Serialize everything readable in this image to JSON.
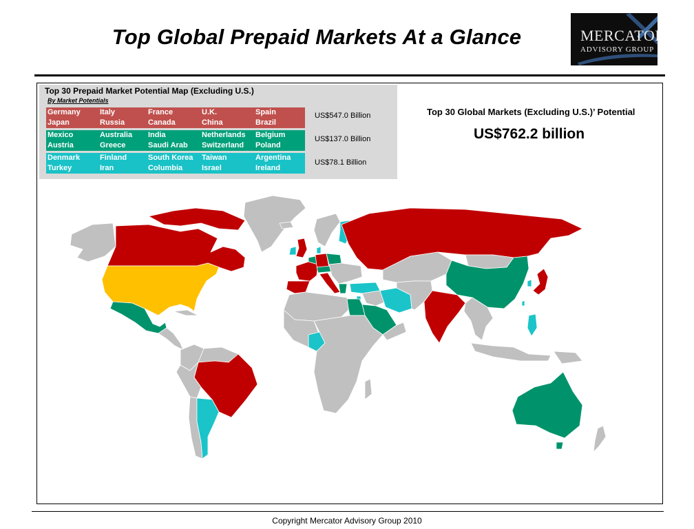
{
  "title": "Top Global Prepaid Markets At a Glance",
  "logo": {
    "line1": "MERCATOR",
    "line2": "ADVISORY GROUP"
  },
  "legend": {
    "title": "Top 30 Prepaid Market Potential Map (Excluding U.S.)",
    "subtitle": "By Market Potentials",
    "tiers": [
      {
        "color": "#c0504d",
        "value": "US$547.0 Billion",
        "row1": [
          "Germany",
          "Italy",
          "France",
          "U.K.",
          "Spain"
        ],
        "row2": [
          "Japan",
          "Russia",
          "Canada",
          "China",
          "Brazil"
        ]
      },
      {
        "color": "#00a07a",
        "value": "US$137.0 Billion",
        "row1": [
          "Mexico",
          "Australia",
          "India",
          "Netherlands",
          "Belgium"
        ],
        "row2": [
          "Austria",
          "Greece",
          "Saudi Arab",
          "Switzerland",
          "Poland"
        ]
      },
      {
        "color": "#19c2c6",
        "value": "US$78.1 Billion",
        "row1": [
          "Denmark",
          "Finland",
          "South Korea",
          "Taiwan",
          "Argentina"
        ],
        "row2": [
          "Turkey",
          "Iran",
          "Columbia",
          "Israel",
          "Ireland"
        ]
      }
    ]
  },
  "summary": {
    "label": "Top 30 Global Markets (Excluding U.S.)’ Potential",
    "value": "US$762.2 billion"
  },
  "map_colors": {
    "tier1": "#c00000",
    "tier2": "#00936b",
    "tier3": "#1bc4c9",
    "united_states": "#ffc000",
    "other": "#c0c0c0",
    "border": "#ffffff"
  },
  "copyright": "Copyright Mercator Advisory Group 2010"
}
